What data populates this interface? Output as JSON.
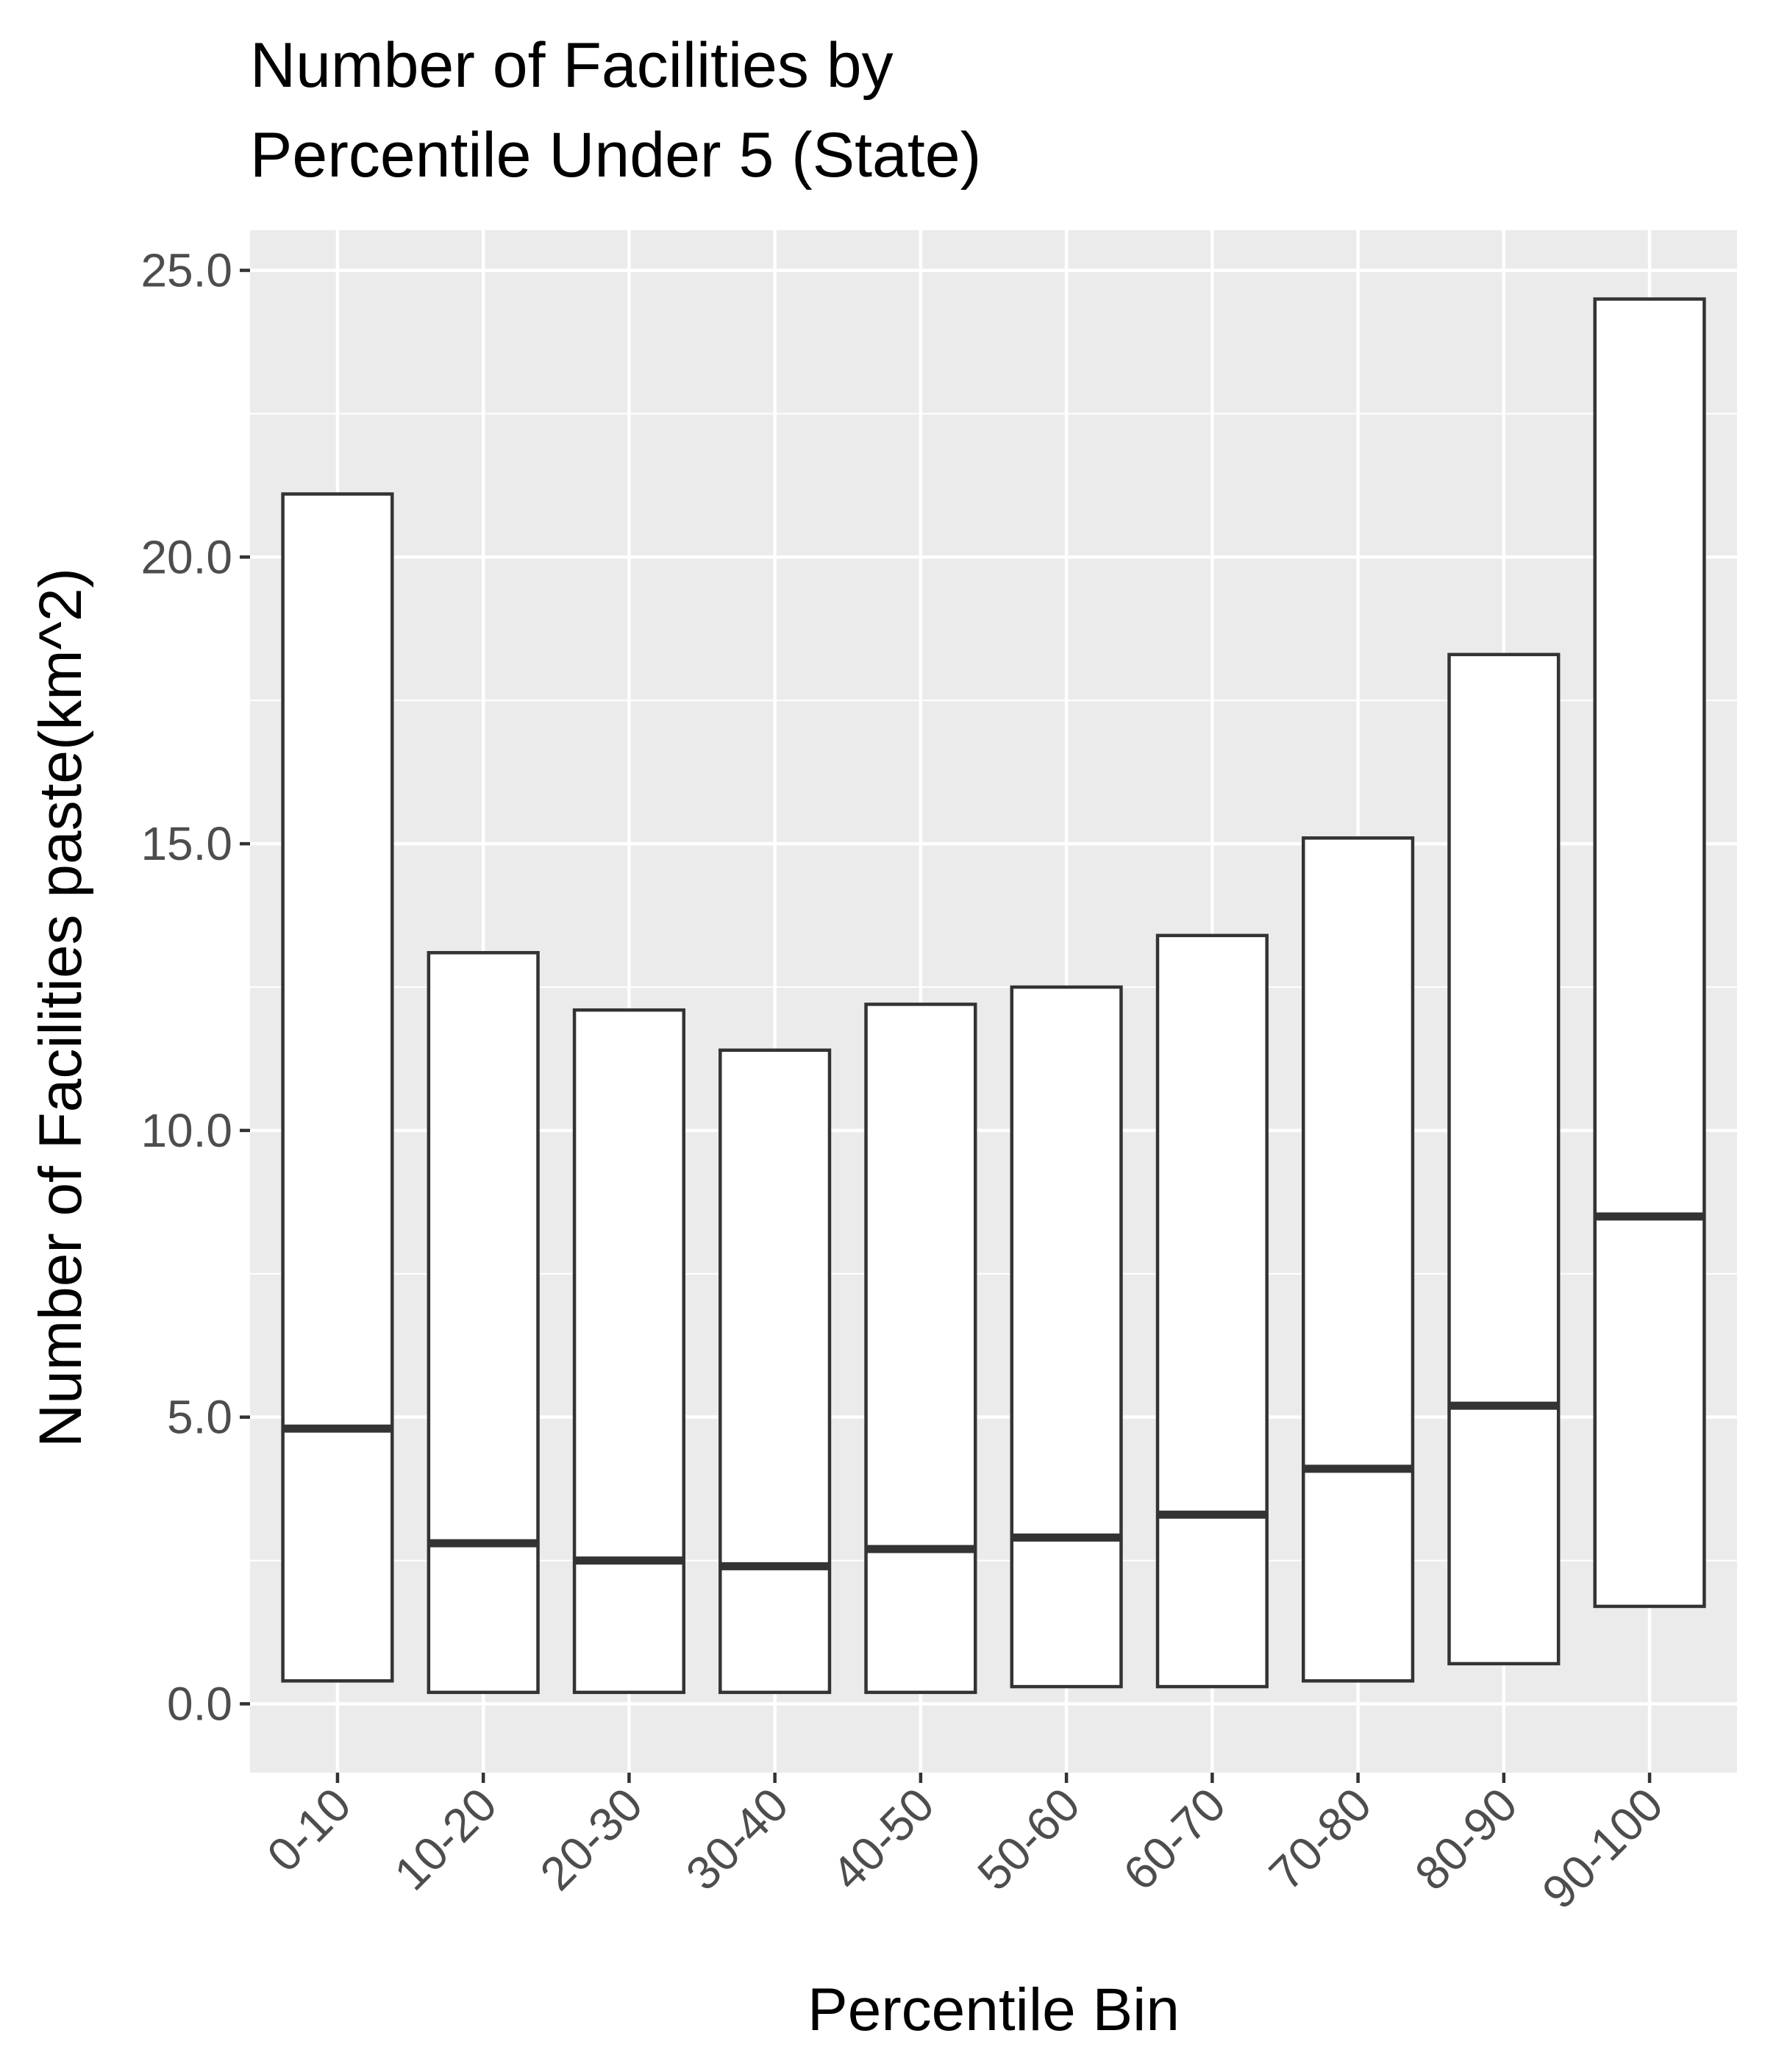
{
  "chart_data": {
    "type": "box",
    "title_lines": [
      "Number of Facilities by",
      "Percentile Under 5 (State)"
    ],
    "xlabel": "Percentile Bin",
    "ylabel": "Number of Facilities paste(km^2)",
    "categories": [
      "0-10",
      "10-20",
      "20-30",
      "30-40",
      "40-50",
      "50-60",
      "60-70",
      "70-80",
      "80-90",
      "90-100"
    ],
    "bars": [
      {
        "low": 0.4,
        "median": 4.8,
        "high": 21.1
      },
      {
        "low": 0.2,
        "median": 2.8,
        "high": 13.1
      },
      {
        "low": 0.2,
        "median": 2.5,
        "high": 12.1
      },
      {
        "low": 0.2,
        "median": 2.4,
        "high": 11.4
      },
      {
        "low": 0.2,
        "median": 2.7,
        "high": 12.2
      },
      {
        "low": 0.3,
        "median": 2.9,
        "high": 12.5
      },
      {
        "low": 0.3,
        "median": 3.3,
        "high": 13.4
      },
      {
        "low": 0.4,
        "median": 4.1,
        "high": 15.1
      },
      {
        "low": 0.7,
        "median": 5.2,
        "high": 18.3
      },
      {
        "low": 1.7,
        "median": 8.5,
        "high": 24.5
      }
    ],
    "yticks": [
      "0.0",
      "5.0",
      "10.0",
      "15.0",
      "20.0",
      "25.0"
    ],
    "ylim": [
      -1.2,
      25.7
    ],
    "grid": true,
    "colors": {
      "panel": "#ebebeb",
      "grid": "#ffffff",
      "box_fill": "#ffffff",
      "box_stroke": "#333333",
      "tick_text": "#4d4d4d",
      "title_text": "#000000"
    }
  }
}
